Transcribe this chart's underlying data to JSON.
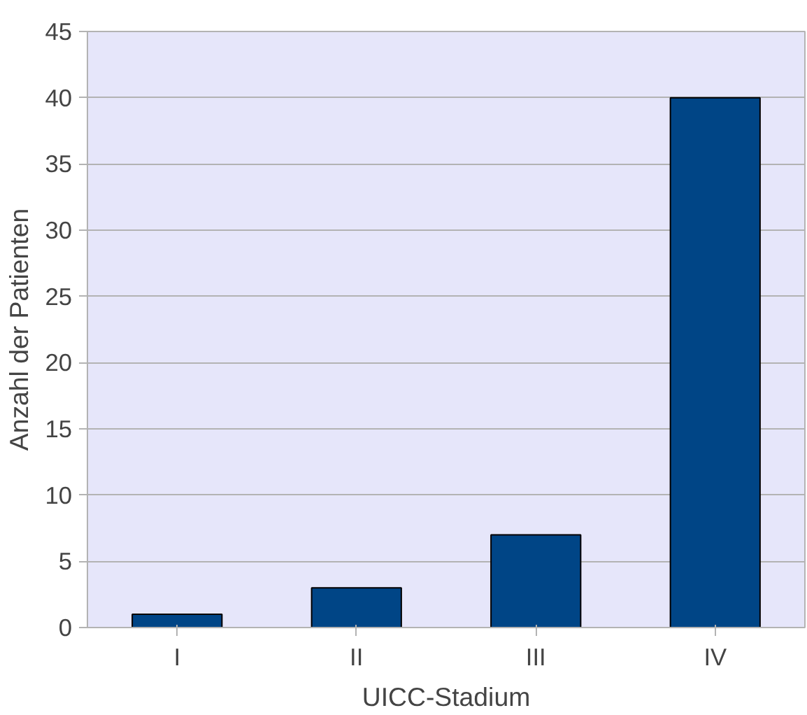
{
  "chart_data": {
    "type": "bar",
    "categories": [
      "I",
      "II",
      "III",
      "IV"
    ],
    "values": [
      1,
      3,
      7,
      40
    ],
    "color": "#004586",
    "xlabel": "UICC-Stadium",
    "ylabel": "Anzahl der Patienten",
    "ylim": [
      0,
      45
    ],
    "yticks": [
      0,
      5,
      10,
      15,
      20,
      25,
      30,
      35,
      40,
      45
    ],
    "grid": "y"
  }
}
